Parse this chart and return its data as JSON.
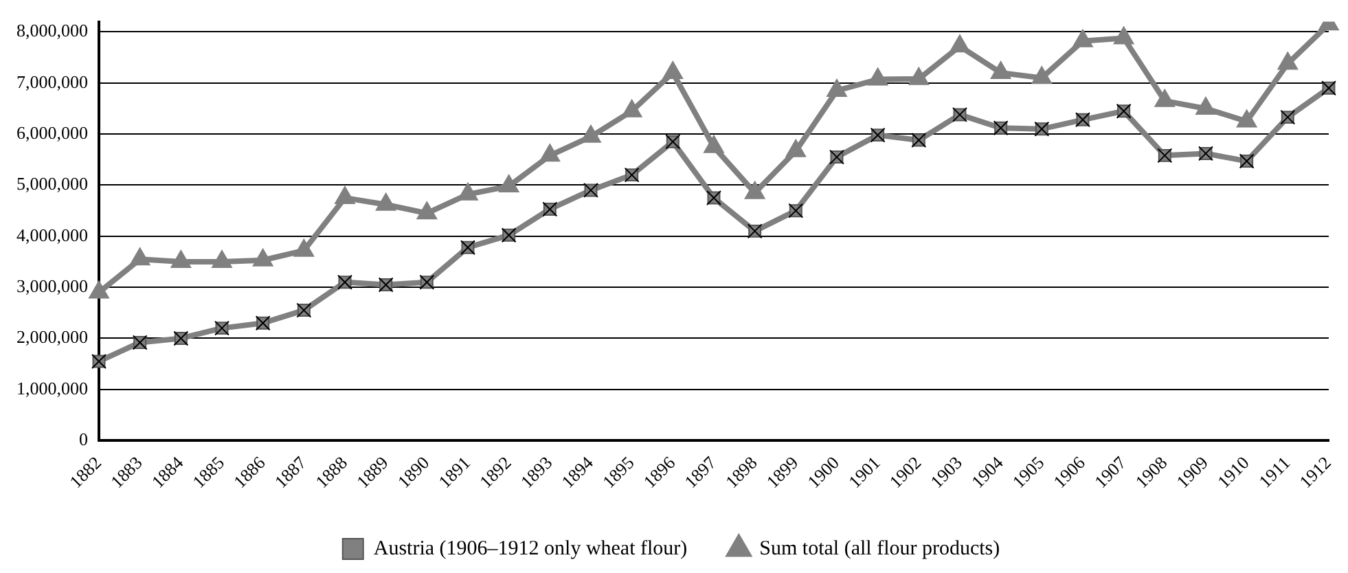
{
  "chart_data": {
    "type": "line",
    "categories": [
      "1882",
      "1883",
      "1884",
      "1885",
      "1886",
      "1887",
      "1888",
      "1889",
      "1890",
      "1891",
      "1892",
      "1893",
      "1894",
      "1895",
      "1896",
      "1897",
      "1898",
      "1899",
      "1900",
      "1901",
      "1902",
      "1903",
      "1904",
      "1905",
      "1906",
      "1907",
      "1908",
      "1909",
      "1910",
      "1911",
      "1912"
    ],
    "series": [
      {
        "name": "Austria (1906–1912 only wheat flour)",
        "color": "#808080",
        "marker": "square",
        "values": [
          1550000,
          1920000,
          2000000,
          2200000,
          2300000,
          2550000,
          3100000,
          3050000,
          3100000,
          3780000,
          4020000,
          4530000,
          4900000,
          5200000,
          5850000,
          4750000,
          4100000,
          4500000,
          5550000,
          5980000,
          5880000,
          6380000,
          6120000,
          6100000,
          6280000,
          6450000,
          5580000,
          5620000,
          5470000,
          6330000,
          6900000
        ]
      },
      {
        "name": "Sum total (all flour products)",
        "color": "#808080",
        "marker": "triangle",
        "values": [
          2900000,
          3550000,
          3500000,
          3500000,
          3530000,
          3720000,
          4750000,
          4620000,
          4450000,
          4820000,
          4980000,
          5580000,
          5950000,
          6450000,
          7200000,
          5750000,
          4850000,
          5670000,
          6850000,
          7070000,
          7080000,
          7720000,
          7200000,
          7100000,
          7820000,
          7880000,
          6650000,
          6500000,
          6250000,
          7380000,
          8150000
        ]
      }
    ],
    "ylim": [
      0,
      8200000
    ],
    "yticks": [
      0,
      {
        "value": 1000000,
        "label": "1,000,000"
      },
      {
        "value": 2000000,
        "label": "2,000,000"
      },
      {
        "value": 3000000,
        "label": "3,000,000"
      },
      {
        "value": 4000000,
        "label": "4,000,000"
      },
      {
        "value": 5000000,
        "label": "5,000,000"
      },
      {
        "value": 6000000,
        "label": "6,000,000"
      },
      {
        "value": 7000000,
        "label": "7,000,000"
      },
      {
        "value": 8000000,
        "label": "8,000,000"
      }
    ],
    "grid": "y",
    "legend": "bottom",
    "line_style": "solid"
  }
}
